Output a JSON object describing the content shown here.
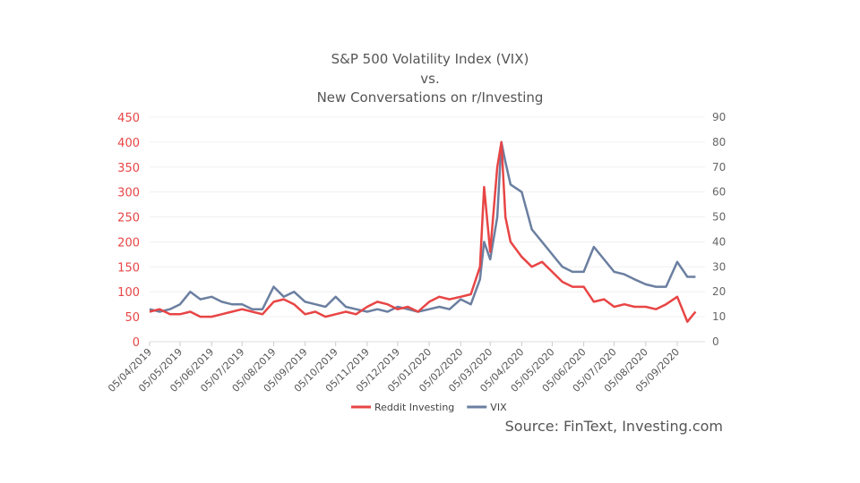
{
  "chart_data": {
    "type": "line",
    "title": [
      "S&P 500 Volatility Index (VIX)",
      "vs.",
      "New Conversations on r/Investing"
    ],
    "source": "Source: FinText, Investing.com",
    "x_ticks": [
      "05/04/2019",
      "05/05/2019",
      "05/06/2019",
      "05/07/2019",
      "05/08/2019",
      "05/09/2019",
      "05/10/2019",
      "05/11/2019",
      "05/12/2019",
      "05/01/2020",
      "05/02/2020",
      "05/03/2020",
      "05/04/2020",
      "05/05/2020",
      "05/06/2020",
      "05/07/2020",
      "05/08/2020",
      "05/09/2020"
    ],
    "y_left": {
      "ylim": [
        0,
        450
      ],
      "ticks": [
        0,
        50,
        100,
        150,
        200,
        250,
        300,
        350,
        400,
        450
      ],
      "color": "#e84545"
    },
    "y_right": {
      "ylim": [
        0,
        90
      ],
      "ticks": [
        0,
        10,
        20,
        30,
        40,
        50,
        60,
        70,
        80,
        90
      ],
      "color": "#666666"
    },
    "grid": true,
    "legend_placement": "bottom",
    "x": [
      "05/04/2019",
      "15/04/2019",
      "25/04/2019",
      "05/05/2019",
      "15/05/2019",
      "25/05/2019",
      "05/06/2019",
      "15/06/2019",
      "25/06/2019",
      "05/07/2019",
      "15/07/2019",
      "25/07/2019",
      "05/08/2019",
      "15/08/2019",
      "25/08/2019",
      "05/09/2019",
      "15/09/2019",
      "25/09/2019",
      "05/10/2019",
      "15/10/2019",
      "25/10/2019",
      "05/11/2019",
      "15/11/2019",
      "25/11/2019",
      "05/12/2019",
      "15/12/2019",
      "25/12/2019",
      "05/01/2020",
      "15/01/2020",
      "25/01/2020",
      "05/02/2020",
      "15/02/2020",
      "24/02/2020",
      "28/02/2020",
      "05/03/2020",
      "12/03/2020",
      "16/03/2020",
      "20/03/2020",
      "25/03/2020",
      "05/04/2020",
      "15/04/2020",
      "25/04/2020",
      "05/05/2020",
      "15/05/2020",
      "25/05/2020",
      "05/06/2020",
      "15/06/2020",
      "25/06/2020",
      "05/07/2020",
      "15/07/2020",
      "25/07/2020",
      "05/08/2020",
      "15/08/2020",
      "25/08/2020",
      "05/09/2020",
      "15/09/2020",
      "23/09/2020"
    ],
    "series": [
      {
        "name": "Reddit Investing",
        "axis": "left",
        "color": "#e84545",
        "values": [
          60,
          65,
          55,
          55,
          60,
          50,
          50,
          55,
          60,
          65,
          60,
          55,
          80,
          85,
          75,
          55,
          60,
          50,
          55,
          60,
          55,
          70,
          80,
          75,
          65,
          70,
          60,
          80,
          90,
          85,
          90,
          95,
          150,
          310,
          180,
          350,
          400,
          250,
          200,
          170,
          150,
          160,
          140,
          120,
          110,
          110,
          80,
          85,
          70,
          75,
          70,
          70,
          65,
          75,
          90,
          40,
          60
        ]
      },
      {
        "name": "VIX",
        "axis": "right",
        "color": "#6b7fa0",
        "values": [
          13,
          12,
          13,
          15,
          20,
          17,
          18,
          16,
          15,
          15,
          13,
          13,
          22,
          18,
          20,
          16,
          15,
          14,
          18,
          14,
          13,
          12,
          13,
          12,
          14,
          13,
          12,
          13,
          14,
          13,
          17,
          15,
          25,
          40,
          33,
          50,
          80,
          72,
          63,
          60,
          45,
          40,
          35,
          30,
          28,
          28,
          38,
          33,
          28,
          27,
          25,
          23,
          22,
          22,
          32,
          26,
          26
        ]
      }
    ]
  }
}
